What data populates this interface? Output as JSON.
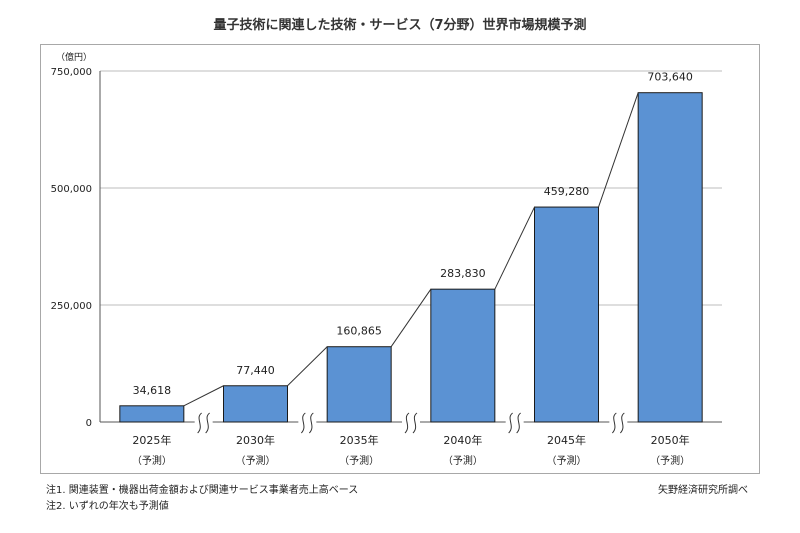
{
  "page": {
    "title": "量子技術に関連した技術・サービス（7分野）世界市場規模予測",
    "notes": [
      "注1.  関連装置・機器出荷金額および関連サービス事業者売上高ベース",
      "注2.  いずれの年次も予測値"
    ],
    "source": "矢野経済研究所調べ"
  },
  "chart_data": {
    "type": "bar",
    "unit_label": "（億円）",
    "categories": [
      "2025年",
      "2030年",
      "2035年",
      "2040年",
      "2045年",
      "2050年"
    ],
    "category_sublabel": "（予測）",
    "values": [
      34618,
      77440,
      160865,
      283830,
      459280,
      703640
    ],
    "data_labels": [
      "34,618",
      "77,440",
      "160,865",
      "283,830",
      "459,280",
      "703,640"
    ],
    "yticks": [
      0,
      250000,
      500000,
      750000
    ],
    "ytick_labels": [
      "0",
      "250,000",
      "500,000",
      "750,000"
    ],
    "ylim": [
      0,
      750000
    ],
    "grid": true,
    "connector_lines": true,
    "axis_break_marks": true,
    "bar_color": "#5b92d3",
    "bar_border_color": "#1a1a1a",
    "grid_color": "#bdbdbd",
    "line_color": "#333333"
  }
}
